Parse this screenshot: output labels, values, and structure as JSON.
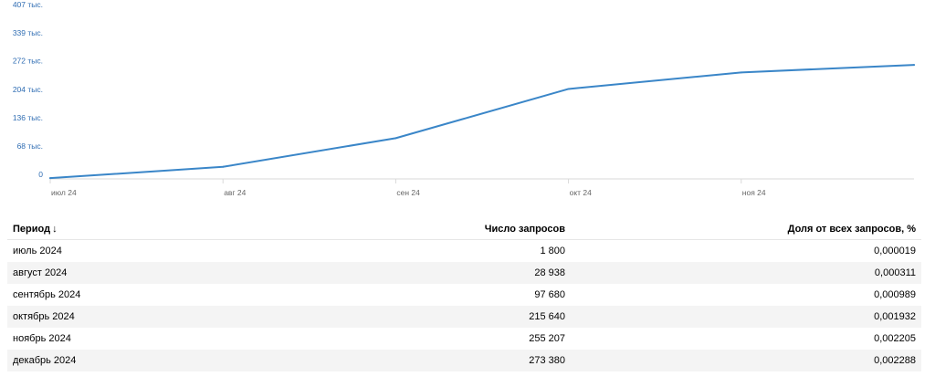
{
  "chart_data": {
    "type": "line",
    "x": [
      "июль 2024",
      "август 2024",
      "сентябрь 2024",
      "октябрь 2024",
      "ноябрь 2024",
      "декабрь 2024"
    ],
    "x_tick_labels": [
      "июл 24",
      "авг 24",
      "сен 24",
      "окт 24",
      "ноя 24"
    ],
    "y_tick_values": [
      0,
      68000,
      136000,
      204000,
      272000,
      339000,
      407000
    ],
    "y_tick_labels": [
      "0",
      "68 тыс.",
      "136 тыс.",
      "204 тыс.",
      "272 тыс.",
      "339 тыс.",
      "407 тыс."
    ],
    "ylim": [
      0,
      407000
    ],
    "series": [
      {
        "values": [
          1800,
          28938,
          97680,
          215640,
          255207,
          273380
        ]
      }
    ],
    "line_color": "#3a86c8",
    "legend": false,
    "grid": false
  },
  "table": {
    "headers": [
      "Период",
      "Число запросов",
      "Доля от всех запросов, %"
    ],
    "sort_icon": "sort-down-arrow-icon",
    "sort_glyph": "↓",
    "rows": [
      [
        "июль 2024",
        "1 800",
        "0,000019"
      ],
      [
        "август 2024",
        "28 938",
        "0,000311"
      ],
      [
        "сентябрь 2024",
        "97 680",
        "0,000989"
      ],
      [
        "октябрь 2024",
        "215 640",
        "0,001932"
      ],
      [
        "ноябрь 2024",
        "255 207",
        "0,002205"
      ],
      [
        "декабрь 2024",
        "273 380",
        "0,002288"
      ]
    ]
  }
}
